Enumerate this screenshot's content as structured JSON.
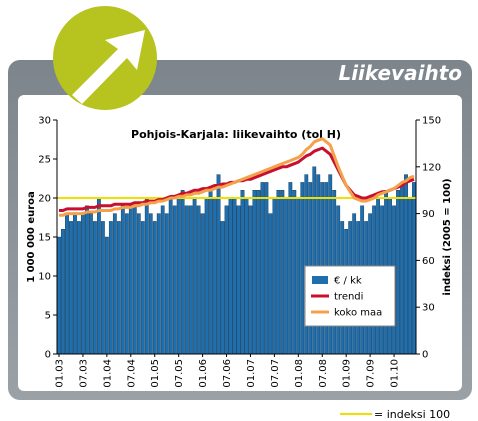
{
  "header": {
    "title": "Liikevaihto"
  },
  "chart_data": {
    "type": "bar-line",
    "title": "Pohjois-Karjala: liikevaihto (tol H)",
    "y_label": "1 000 000 euroa",
    "y2_label": "indeksi (2005 = 100)",
    "categories": [
      "01.03",
      null,
      null,
      null,
      null,
      null,
      "07.03",
      null,
      null,
      null,
      null,
      null,
      "01.04",
      null,
      null,
      null,
      null,
      null,
      "07.04",
      null,
      null,
      null,
      null,
      null,
      "01.05",
      null,
      null,
      null,
      null,
      null,
      "07.05",
      null,
      null,
      null,
      null,
      null,
      "01.06",
      null,
      null,
      null,
      null,
      null,
      "07.06",
      null,
      null,
      null,
      null,
      null,
      "01.07",
      null,
      null,
      null,
      null,
      null,
      "07.07",
      null,
      null,
      null,
      null,
      null,
      "01.08",
      null,
      null,
      null,
      null,
      null,
      "07.08",
      null,
      null,
      null,
      null,
      null,
      "01.09",
      null,
      null,
      null,
      null,
      null,
      "07.09",
      null,
      null,
      null,
      null,
      null,
      "01.10",
      null,
      null,
      null,
      null,
      null
    ],
    "series": [
      {
        "name": "€ / kk",
        "type": "bar",
        "axis": "y",
        "color": "#1f6fae",
        "values": [
          15,
          16,
          18,
          17,
          18,
          17,
          18,
          19,
          18,
          17,
          20,
          17,
          15,
          17,
          18,
          17,
          19,
          18,
          19,
          19,
          18,
          17,
          20,
          18,
          17,
          18,
          19,
          18,
          20,
          19,
          20,
          21,
          19,
          19,
          20,
          19,
          18,
          20,
          21,
          20,
          23,
          17,
          19,
          20,
          20,
          19,
          21,
          20,
          19,
          21,
          21,
          22,
          22,
          18,
          20,
          21,
          21,
          20,
          22,
          21,
          20,
          22,
          23,
          22,
          24,
          23,
          22,
          22,
          23,
          21,
          19,
          17,
          16,
          17,
          18,
          17,
          19,
          17,
          18,
          19,
          20,
          19,
          21,
          20,
          19,
          21,
          22,
          23,
          20,
          22
        ]
      },
      {
        "name": "trendi",
        "type": "line",
        "axis": "y2",
        "color": "#c8102e",
        "values": [
          92,
          92,
          93,
          93,
          93,
          93,
          93,
          94,
          94,
          94,
          95,
          95,
          95,
          95,
          96,
          96,
          96,
          96,
          96,
          97,
          97,
          97,
          98,
          98,
          98,
          99,
          99,
          100,
          101,
          101,
          102,
          103,
          103,
          104,
          105,
          105,
          106,
          106,
          107,
          108,
          108,
          109,
          109,
          110,
          110,
          111,
          111,
          112,
          112,
          113,
          114,
          115,
          116,
          117,
          118,
          119,
          120,
          120,
          121,
          122,
          123,
          125,
          127,
          128,
          130,
          131,
          132,
          130,
          128,
          123,
          118,
          113,
          108,
          105,
          102,
          101,
          100,
          100,
          101,
          102,
          103,
          104,
          104,
          105,
          106,
          107,
          108,
          110,
          111,
          112
        ]
      },
      {
        "name": "koko maa",
        "type": "line",
        "axis": "y2",
        "color": "#f5a04a",
        "values": [
          89,
          89,
          90,
          90,
          90,
          90,
          90,
          91,
          91,
          91,
          92,
          92,
          92,
          92,
          93,
          93,
          94,
          94,
          94,
          95,
          95,
          96,
          96,
          97,
          97,
          98,
          98,
          99,
          100,
          100,
          101,
          101,
          102,
          102,
          103,
          103,
          104,
          105,
          105,
          106,
          107,
          107,
          108,
          109,
          110,
          111,
          112,
          113,
          114,
          115,
          116,
          117,
          118,
          119,
          120,
          121,
          122,
          123,
          124,
          125,
          126,
          128,
          131,
          133,
          136,
          137,
          138,
          136,
          134,
          127,
          120,
          114,
          108,
          104,
          100,
          99,
          98,
          98,
          99,
          100,
          102,
          103,
          104,
          105,
          106,
          108,
          110,
          111,
          113,
          114
        ]
      }
    ],
    "reference": {
      "value": 100,
      "axis": "y2",
      "color": "#f0e000",
      "label": "= indeksi 100"
    },
    "ylim": [
      0,
      30
    ],
    "yticks": [
      0,
      5,
      10,
      15,
      20,
      25,
      30
    ],
    "y2lim": [
      0,
      150
    ],
    "y2ticks": [
      0,
      30,
      60,
      90,
      120,
      150
    ]
  }
}
